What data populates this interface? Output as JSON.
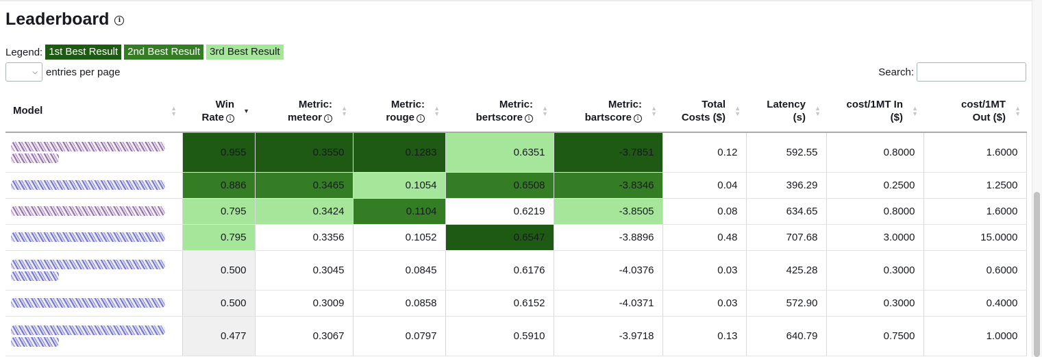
{
  "page": {
    "title": "Leaderboard",
    "info_icon": "info-circle-icon",
    "info_glyph": "i"
  },
  "legend": {
    "label": "Legend:",
    "items": [
      "1st Best Result",
      "2nd Best Result",
      "3rd Best Result"
    ],
    "colors": [
      "#1e5a14",
      "#347d25",
      "#a6e69a"
    ]
  },
  "length_control": {
    "selected": "",
    "label": "entries per page",
    "chevron_icon": "chevron-down-icon",
    "chevron_glyph": "⌵"
  },
  "search": {
    "label": "Search:",
    "value": ""
  },
  "table": {
    "columns": [
      {
        "key": "model",
        "lines": [
          "Model"
        ],
        "info": false
      },
      {
        "key": "win_rate",
        "lines": [
          "Win",
          "Rate"
        ],
        "info": true,
        "sorted": true
      },
      {
        "key": "meteor",
        "lines": [
          "Metric:",
          "meteor"
        ],
        "info": true
      },
      {
        "key": "rouge",
        "lines": [
          "Metric:",
          "rouge"
        ],
        "info": true
      },
      {
        "key": "bertscore",
        "lines": [
          "Metric:",
          "bertscore"
        ],
        "info": true
      },
      {
        "key": "bartscore",
        "lines": [
          "Metric:",
          "bartscore"
        ],
        "info": true
      },
      {
        "key": "total_costs",
        "lines": [
          "Total",
          "Costs ($)"
        ],
        "info": false
      },
      {
        "key": "latency",
        "lines": [
          "Latency",
          "(s)"
        ],
        "info": false
      },
      {
        "key": "cost_in",
        "lines": [
          "cost/1MT In",
          "($)"
        ],
        "info": false
      },
      {
        "key": "cost_out",
        "lines": [
          "cost/1MT",
          "Out ($)"
        ],
        "info": false
      }
    ],
    "sort_icon_up": "▲",
    "sort_icon_down": "▼",
    "rows": [
      {
        "values": [
          "0.955",
          "0.3550",
          "0.1283",
          "0.6351",
          "-3.7851",
          "0.12",
          "592.55",
          "0.8000",
          "1.6000"
        ],
        "ranks": [
          1,
          1,
          1,
          3,
          1,
          0,
          0,
          0,
          0
        ],
        "tall": true,
        "blur": "purple"
      },
      {
        "values": [
          "0.886",
          "0.3465",
          "0.1054",
          "0.6508",
          "-3.8346",
          "0.04",
          "396.29",
          "0.2500",
          "1.2500"
        ],
        "ranks": [
          2,
          2,
          3,
          2,
          2,
          0,
          0,
          0,
          0
        ],
        "tall": false,
        "blur": "blue"
      },
      {
        "values": [
          "0.795",
          "0.3424",
          "0.1104",
          "0.6219",
          "-3.8505",
          "0.08",
          "634.65",
          "0.8000",
          "1.6000"
        ],
        "ranks": [
          3,
          3,
          2,
          0,
          3,
          0,
          0,
          0,
          0
        ],
        "tall": false,
        "blur": "purple"
      },
      {
        "values": [
          "0.795",
          "0.3356",
          "0.1052",
          "0.6547",
          "-3.8896",
          "0.48",
          "707.68",
          "3.0000",
          "15.0000"
        ],
        "ranks": [
          3,
          0,
          0,
          1,
          0,
          0,
          0,
          0,
          0
        ],
        "tall": false,
        "blur": "blue"
      },
      {
        "values": [
          "0.500",
          "0.3045",
          "0.0845",
          "0.6176",
          "-4.0376",
          "0.03",
          "425.28",
          "0.3000",
          "0.6000"
        ],
        "ranks": [
          0,
          0,
          0,
          0,
          0,
          0,
          0,
          0,
          0
        ],
        "tall": true,
        "blur": "blue"
      },
      {
        "values": [
          "0.500",
          "0.3009",
          "0.0858",
          "0.6152",
          "-4.0371",
          "0.03",
          "572.90",
          "0.3000",
          "0.4000"
        ],
        "ranks": [
          0,
          0,
          0,
          0,
          0,
          0,
          0,
          0,
          0
        ],
        "tall": false,
        "blur": "blue"
      },
      {
        "values": [
          "0.477",
          "0.3067",
          "0.0797",
          "0.5910",
          "-3.9718",
          "0.13",
          "640.79",
          "0.7500",
          "1.0000"
        ],
        "ranks": [
          0,
          0,
          0,
          0,
          0,
          0,
          0,
          0,
          0
        ],
        "tall": true,
        "blur": "blue"
      }
    ]
  }
}
